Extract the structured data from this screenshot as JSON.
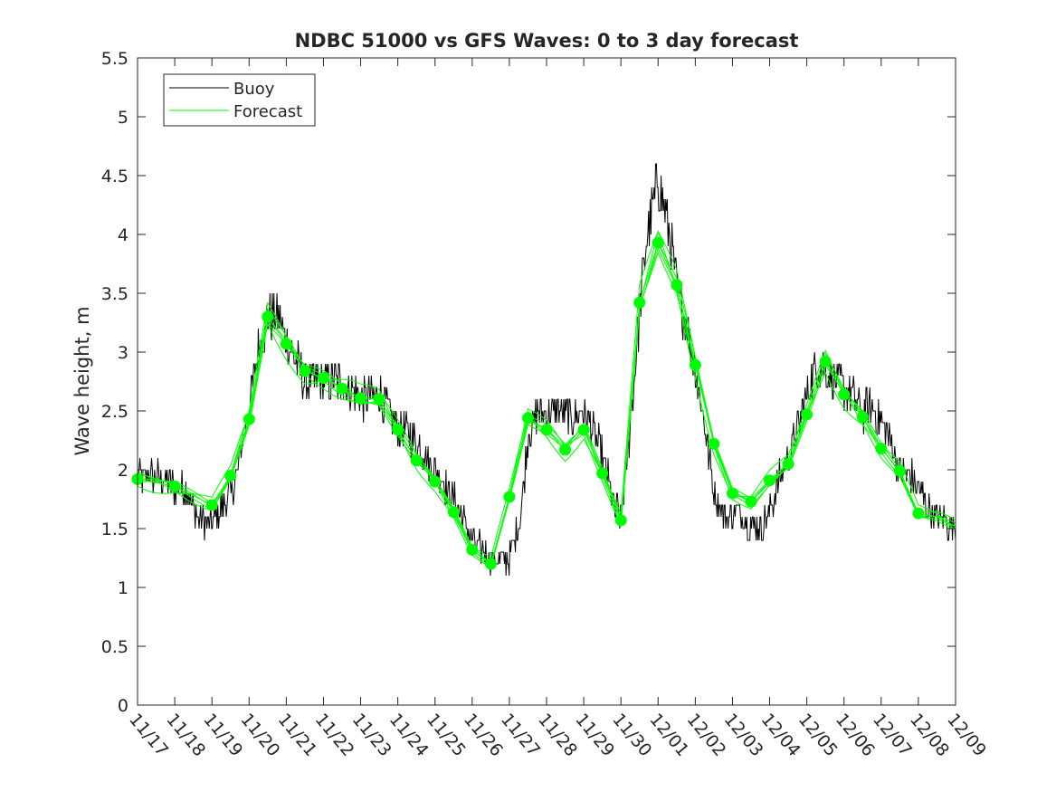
{
  "chart_data": {
    "type": "line",
    "title": "NDBC 51000 vs GFS Waves: 0 to 3 day forecast",
    "xlabel": "",
    "ylabel": "Wave height, m",
    "ylim": [
      0,
      5.5
    ],
    "xlim": [
      0,
      22
    ],
    "yticks": [
      "0",
      "0.5",
      "1",
      "1.5",
      "2",
      "2.5",
      "3",
      "3.5",
      "4",
      "4.5",
      "5",
      "5.5"
    ],
    "xticks": [
      "11/17",
      "11/18",
      "11/19",
      "11/20",
      "11/21",
      "11/22",
      "11/23",
      "11/24",
      "11/25",
      "11/26",
      "11/27",
      "11/28",
      "11/29",
      "11/30",
      "12/01",
      "12/02",
      "12/03",
      "12/04",
      "12/05",
      "12/06",
      "12/07",
      "12/08",
      "12/09"
    ],
    "legend": {
      "placement": "top-left",
      "entries": [
        "Buoy",
        "Forecast"
      ]
    },
    "colors": {
      "buoy": "#000000",
      "forecast": "#00ff00"
    },
    "series": [
      {
        "name": "Buoy",
        "x": [
          0,
          0.5,
          1,
          1.3,
          1.7,
          2,
          2.3,
          2.6,
          2.8,
          3,
          3.2,
          3.5,
          3.8,
          4,
          4.3,
          4.5,
          4.8,
          5,
          5.5,
          6,
          6.5,
          7,
          7.3,
          7.6,
          8,
          8.5,
          9,
          9.5,
          9.8,
          10,
          10.3,
          10.5,
          10.8,
          11,
          11.2,
          11.4,
          11.7,
          12,
          12.3,
          12.6,
          12.8,
          13,
          13.2,
          13.5,
          13.7,
          13.9,
          14,
          14.1,
          14.3,
          14.5,
          14.8,
          15,
          15.3,
          15.5,
          15.8,
          16,
          16.3,
          16.5,
          16.8,
          17,
          17.3,
          17.5,
          17.8,
          18,
          18.3,
          18.5,
          18.8,
          19,
          19.3,
          19.5,
          19.8,
          20,
          20.3,
          20.5,
          20.8,
          21,
          21.3,
          21.5,
          21.8,
          22
        ],
        "values": [
          1.93,
          1.95,
          1.85,
          1.85,
          1.55,
          1.55,
          1.7,
          1.85,
          2.2,
          2.5,
          2.95,
          3.3,
          3.3,
          3.1,
          2.9,
          2.75,
          2.75,
          2.75,
          2.75,
          2.6,
          2.65,
          2.35,
          2.3,
          2.2,
          2.0,
          1.75,
          1.4,
          1.25,
          1.22,
          1.25,
          1.6,
          2.3,
          2.5,
          2.5,
          2.5,
          2.5,
          2.45,
          2.5,
          2.3,
          2.0,
          1.7,
          1.6,
          2.2,
          3.3,
          4.0,
          4.3,
          4.5,
          4.3,
          4.0,
          3.55,
          3.2,
          2.85,
          2.3,
          1.8,
          1.6,
          1.65,
          1.6,
          1.55,
          1.5,
          1.65,
          1.95,
          2.1,
          2.4,
          2.65,
          2.9,
          2.85,
          2.75,
          2.7,
          2.6,
          2.5,
          2.5,
          2.4,
          2.2,
          2.0,
          1.95,
          1.85,
          1.65,
          1.6,
          1.55,
          1.52
        ]
      },
      {
        "name": "Forecast",
        "x": [
          0,
          1,
          2,
          2.5,
          3,
          3.5,
          4,
          4.5,
          5,
          5.5,
          6,
          6.5,
          7,
          7.5,
          8,
          8.5,
          9,
          9.5,
          10,
          10.5,
          11,
          11.5,
          12,
          12.5,
          13,
          13.5,
          14,
          14.5,
          15,
          15.5,
          16,
          16.5,
          17,
          17.5,
          18,
          18.5,
          19,
          19.5,
          20,
          20.5,
          21,
          21.5,
          22
        ],
        "values": [
          1.92,
          1.86,
          1.7,
          1.95,
          2.43,
          3.3,
          3.07,
          2.84,
          2.78,
          2.69,
          2.61,
          2.6,
          2.34,
          2.08,
          1.9,
          1.64,
          1.32,
          1.2,
          1.77,
          2.44,
          2.34,
          2.17,
          2.34,
          1.97,
          1.57,
          3.42,
          3.93,
          3.57,
          2.89,
          2.22,
          1.8,
          1.73,
          1.91,
          2.05,
          2.47,
          2.92,
          2.64,
          2.45,
          2.18,
          1.99,
          1.63,
          1.6,
          1.52
        ]
      }
    ],
    "markers_x": [
      0,
      1,
      2,
      2.5,
      3,
      3.5,
      4,
      4.5,
      5,
      5.5,
      6,
      6.5,
      7,
      7.5,
      8,
      8.5,
      9,
      9.5,
      10,
      10.5,
      11,
      11.5,
      12,
      12.5,
      13,
      13.5,
      14,
      14.5,
      15,
      15.5,
      16,
      16.5,
      17,
      17.5,
      18,
      18.5,
      19,
      19.5,
      20,
      20.5,
      21
    ],
    "markers_y": [
      1.92,
      1.86,
      1.7,
      1.95,
      2.43,
      3.3,
      3.07,
      2.84,
      2.78,
      2.69,
      2.61,
      2.6,
      2.34,
      2.08,
      1.9,
      1.64,
      1.32,
      1.2,
      1.77,
      2.44,
      2.34,
      2.17,
      2.34,
      1.97,
      1.57,
      3.42,
      3.93,
      3.57,
      2.89,
      2.22,
      1.8,
      1.73,
      1.91,
      2.05,
      2.47,
      2.92,
      2.64,
      2.45,
      2.18,
      1.99,
      1.63
    ]
  }
}
